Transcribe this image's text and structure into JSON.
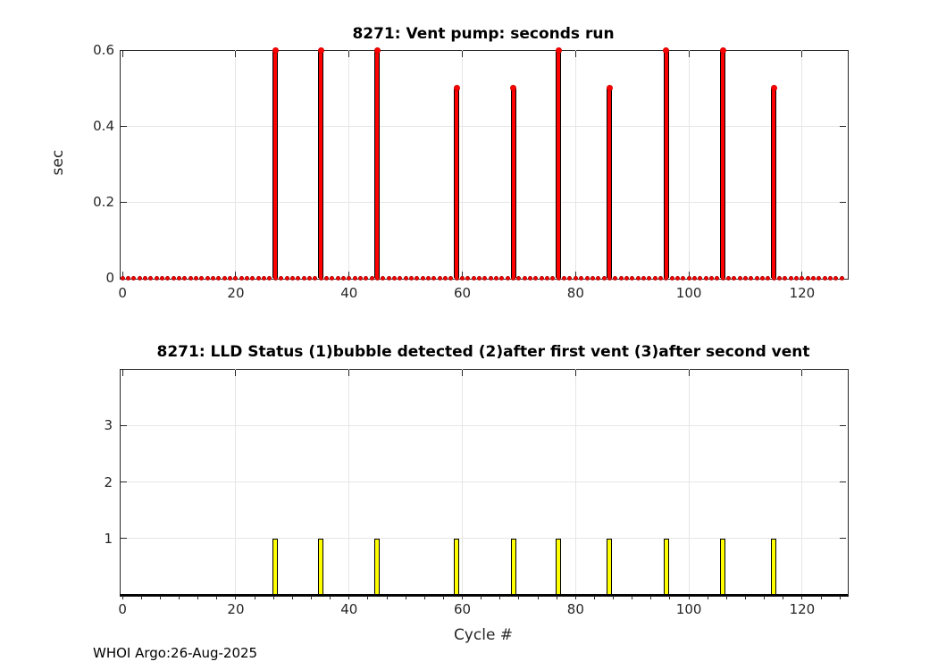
{
  "figure": {
    "footer": "WHOI Argo:26-Aug-2025"
  },
  "chart_data": [
    {
      "type": "stem",
      "title": "8271: Vent pump: seconds run",
      "ylabel": "sec",
      "xlabel": "",
      "series": [
        {
          "name": "vent-pump-seconds-run",
          "x": [
            27,
            35,
            45,
            59,
            69,
            77,
            86,
            96,
            106,
            115
          ],
          "values": [
            0.6,
            0.6,
            0.6,
            0.5,
            0.5,
            0.6,
            0.5,
            0.6,
            0.6,
            0.5
          ]
        }
      ],
      "baseline": {
        "y": 0,
        "x_start": 0,
        "x_end": 127,
        "step": 1,
        "note": "red filled dot at y=0 for every cycle"
      },
      "xlim": [
        -0.5,
        127.9
      ],
      "ylim": [
        0,
        0.6
      ],
      "xticks": [
        0,
        20,
        40,
        60,
        80,
        100,
        120
      ],
      "yticks": [
        0,
        0.2,
        0.4,
        0.6
      ],
      "ytick_labels": [
        "0",
        "0.2",
        "0.4",
        "0.6"
      ],
      "grid": true,
      "legend": "none",
      "stem_color": "#ff0000",
      "stem_edge_color": "#000000"
    },
    {
      "type": "bar",
      "title": "8271: LLD Status   (1)bubble detected   (2)after first vent  (3)after second vent",
      "ylabel": "",
      "xlabel": "Cycle #",
      "series": [
        {
          "name": "lld-status",
          "x": [
            27,
            35,
            45,
            59,
            69,
            77,
            86,
            96,
            106,
            115
          ],
          "values": [
            1,
            1,
            1,
            1,
            1,
            1,
            1,
            1,
            1,
            1
          ]
        }
      ],
      "xlim": [
        -0.5,
        127.9
      ],
      "ylim": [
        0,
        4
      ],
      "xticks": [
        0,
        20,
        40,
        60,
        80,
        100,
        120
      ],
      "yticks": [
        1,
        2,
        3
      ],
      "ytick_labels": [
        "1",
        "2",
        "3"
      ],
      "minor_x_tick_step": 3.3333,
      "grid": true,
      "legend": "none",
      "bar_color": "#ffff00",
      "bar_edge_color": "#000000"
    }
  ],
  "colors": {
    "background": "#ffffff",
    "grid": "#e6e6e6",
    "axis": "#262626",
    "text": "#262626",
    "stem": "#ff0000",
    "bar": "#ffff00"
  }
}
